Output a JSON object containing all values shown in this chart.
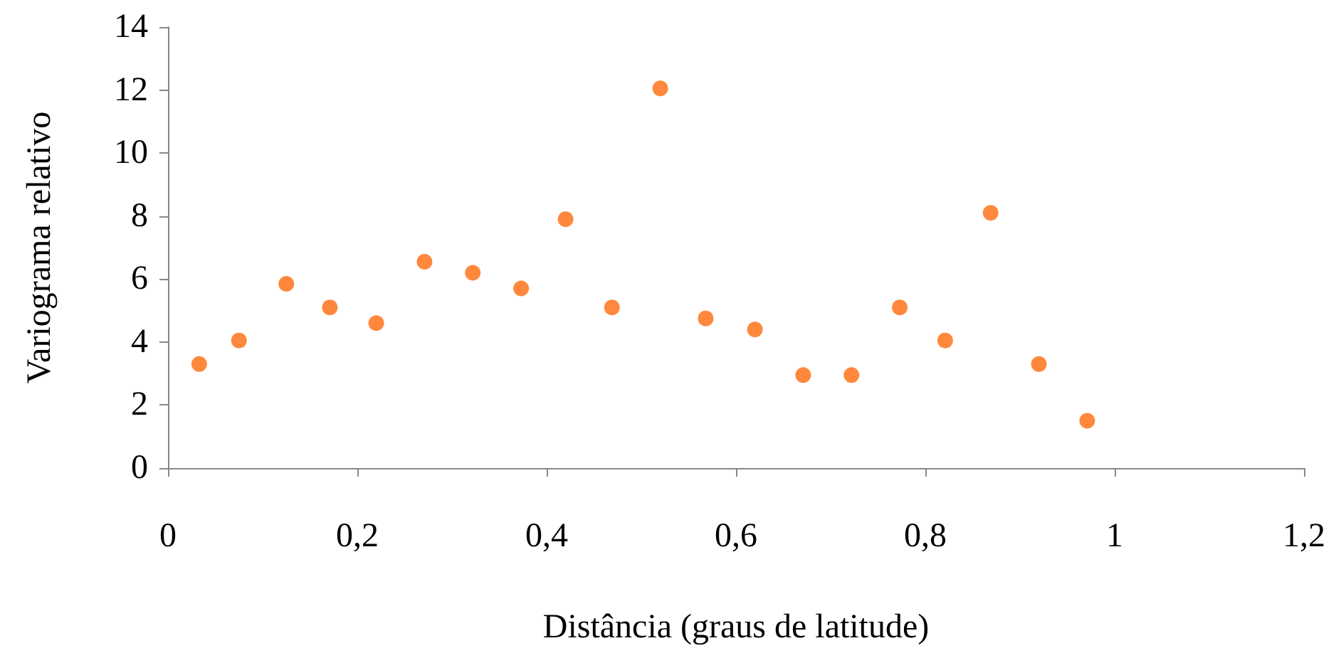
{
  "chart_data": {
    "type": "scatter",
    "xlabel": "Distância (graus de latitude)",
    "ylabel": "Variograma relativo",
    "x": [
      0.033,
      0.075,
      0.125,
      0.171,
      0.22,
      0.271,
      0.322,
      0.373,
      0.42,
      0.469,
      0.52,
      0.568,
      0.62,
      0.671,
      0.722,
      0.773,
      0.821,
      0.869,
      0.92,
      0.971
    ],
    "series": [
      {
        "color": "#ff6a0d",
        "values": [
          3.3,
          4.05,
          5.85,
          5.1,
          4.6,
          6.55,
          6.2,
          5.7,
          7.9,
          5.1,
          12.05,
          4.75,
          4.4,
          2.95,
          2.95,
          5.1,
          4.05,
          8.1,
          3.3,
          1.5
        ]
      }
    ],
    "xlim": [
      0,
      1.2
    ],
    "xticks": [
      {
        "value": 0,
        "label": "0"
      },
      {
        "value": 0.2,
        "label": "0,2"
      },
      {
        "value": 0.4,
        "label": "0,4"
      },
      {
        "value": 0.6,
        "label": "0,6"
      },
      {
        "value": 0.8,
        "label": "0,8"
      },
      {
        "value": 1,
        "label": "1"
      },
      {
        "value": 1.2,
        "label": "1,2"
      }
    ],
    "ylim": [
      0,
      14
    ],
    "yticks": [
      0,
      2,
      4,
      6,
      8,
      10,
      12,
      14
    ],
    "grid": false,
    "marker": "circle"
  }
}
